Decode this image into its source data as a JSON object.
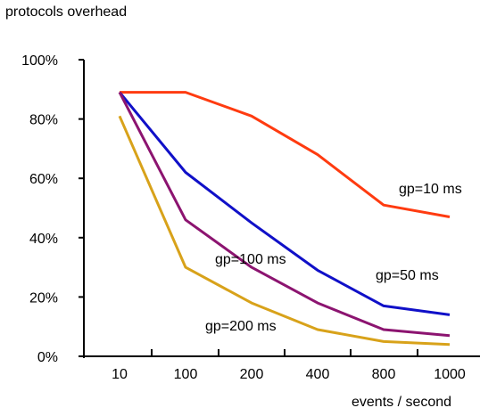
{
  "chart_data": {
    "type": "line",
    "title": "protocols overhead",
    "xlabel": "events / second",
    "ylabel": "",
    "categories": [
      "10",
      "100",
      "200",
      "400",
      "800",
      "1000"
    ],
    "ylim": [
      0,
      100
    ],
    "yticks": [
      "0%",
      "20%",
      "40%",
      "60%",
      "80%",
      "100%"
    ],
    "grid": false,
    "series": [
      {
        "name": "gp=10 ms",
        "color": "#ff3b10",
        "values": [
          89,
          89,
          81,
          68,
          51,
          47
        ]
      },
      {
        "name": "gp=50 ms",
        "color": "#1010c8",
        "values": [
          89,
          62,
          45,
          29,
          17,
          14
        ]
      },
      {
        "name": "gp=100 ms",
        "color": "#8c1470",
        "values": [
          89,
          46,
          30,
          18,
          9,
          7
        ]
      },
      {
        "name": "gp=200 ms",
        "color": "#d8a21a",
        "values": [
          81,
          30,
          18,
          9,
          5,
          4
        ]
      }
    ]
  }
}
